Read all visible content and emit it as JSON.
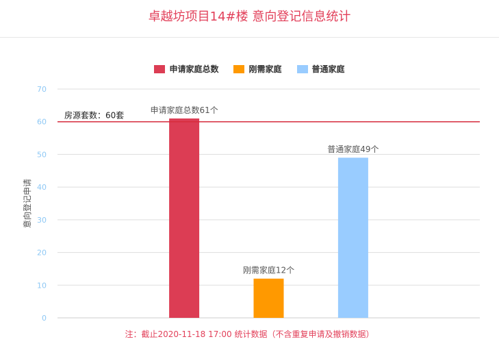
{
  "title": "卓越坊项目14#楼 意向登记信息统计",
  "footnote": "注：截止2020-11-18 17:00 统计数据（不含重复申请及撤销数据）",
  "colors": {
    "title": "#e2405a",
    "reference_line": "#d62b3c",
    "axis_tick": "#8ec8f5"
  },
  "chart_data": {
    "type": "bar",
    "title": "卓越坊项目14#楼 意向登记信息统计",
    "xlabel": "",
    "ylabel": "意向登记申请",
    "ylim": [
      0,
      70
    ],
    "yticks": [
      0,
      10,
      20,
      30,
      40,
      50,
      60,
      70
    ],
    "grid": true,
    "legend_position": "top-center",
    "series": [
      {
        "name": "申请家庭总数",
        "value": 61,
        "label": "申请家庭总数61个",
        "color": "#dc3d54"
      },
      {
        "name": "刚需家庭",
        "value": 12,
        "label": "刚需家庭12个",
        "color": "#ff9900"
      },
      {
        "name": "普通家庭",
        "value": 49,
        "label": "普通家庭49个",
        "color": "#99ccff"
      }
    ],
    "reference_line": {
      "value": 60,
      "label": "房源套数：60套"
    }
  }
}
